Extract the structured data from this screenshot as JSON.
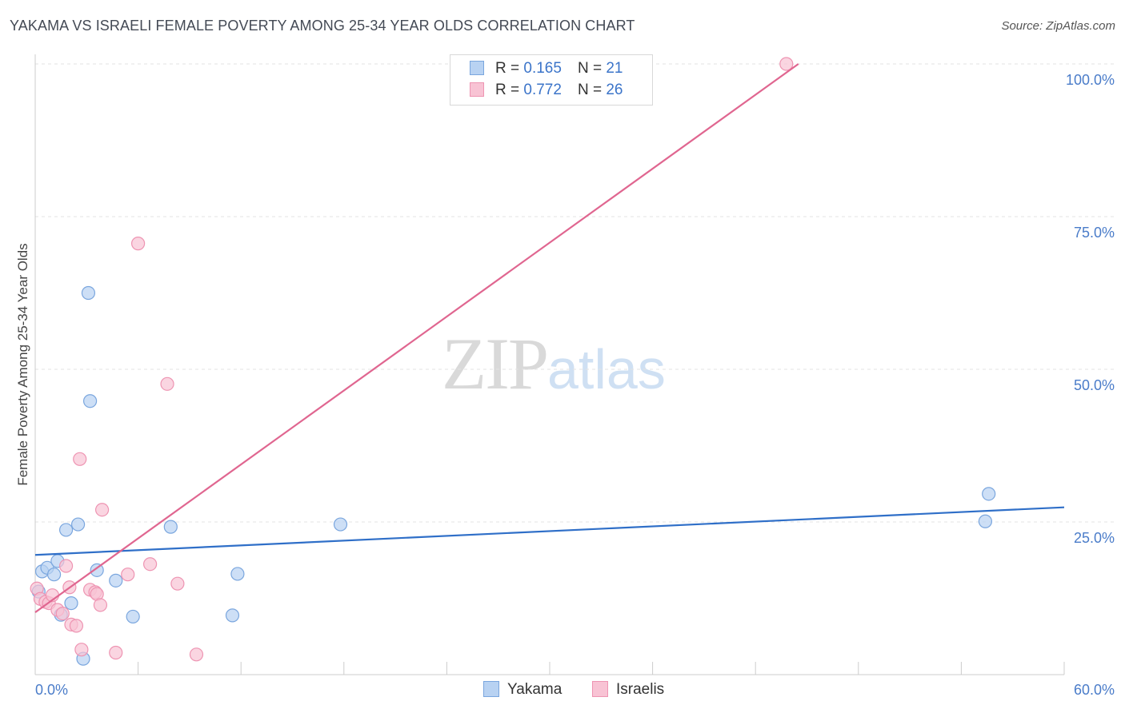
{
  "title": "YAKAMA VS ISRAELI FEMALE POVERTY AMONG 25-34 YEAR OLDS CORRELATION CHART",
  "source": "Source: ZipAtlas.com",
  "watermark": {
    "zip": "ZIP",
    "atlas": "atlas"
  },
  "legend": {
    "r_label": "R =",
    "n_label": "N =",
    "rows": [
      {
        "r": "0.165",
        "n": "21"
      },
      {
        "r": "0.772",
        "n": "26"
      }
    ]
  },
  "colors": {
    "yakama_fill": "#b8d2f2",
    "yakama_stroke": "#7aa6de",
    "yakama_line": "#2f6fc8",
    "israeli_fill": "#f8c3d4",
    "israeli_stroke": "#ee94b2",
    "israeli_line": "#e06690",
    "grid": "#e3e3e3",
    "axis": "#cccccc",
    "tick_text": "#4a7cc9"
  },
  "chart_data": {
    "type": "scatter",
    "title": "YAKAMA VS ISRAELI FEMALE POVERTY AMONG 25-34 YEAR OLDS CORRELATION CHART",
    "xlabel": "",
    "ylabel": "Female Poverty Among 25-34 Year Olds",
    "xlim": [
      0,
      60
    ],
    "ylim": [
      0,
      100
    ],
    "x_tick_labels": [
      "0.0%",
      "60.0%"
    ],
    "y_ticks": [
      25,
      50,
      75,
      100
    ],
    "y_tick_labels": [
      "25.0%",
      "50.0%",
      "75.0%",
      "100.0%"
    ],
    "grid": true,
    "legend_position": "top-center",
    "series": [
      {
        "name": "Yakama",
        "r": 0.165,
        "n": 21,
        "trend": {
          "x0": 0,
          "y0": 19.6,
          "x1": 60,
          "y1": 27.4
        },
        "points": [
          {
            "x": 0.2,
            "y": 13.6
          },
          {
            "x": 0.4,
            "y": 16.9
          },
          {
            "x": 0.7,
            "y": 17.5
          },
          {
            "x": 1.1,
            "y": 16.4
          },
          {
            "x": 1.3,
            "y": 18.6
          },
          {
            "x": 1.5,
            "y": 9.8
          },
          {
            "x": 1.8,
            "y": 23.7
          },
          {
            "x": 2.1,
            "y": 11.7
          },
          {
            "x": 2.5,
            "y": 24.6
          },
          {
            "x": 2.8,
            "y": 2.6
          },
          {
            "x": 3.1,
            "y": 62.5
          },
          {
            "x": 3.2,
            "y": 44.8
          },
          {
            "x": 3.6,
            "y": 17.1
          },
          {
            "x": 4.7,
            "y": 15.4
          },
          {
            "x": 5.7,
            "y": 9.5
          },
          {
            "x": 7.9,
            "y": 24.2
          },
          {
            "x": 11.5,
            "y": 9.7
          },
          {
            "x": 11.8,
            "y": 16.5
          },
          {
            "x": 17.8,
            "y": 24.6
          },
          {
            "x": 55.4,
            "y": 25.1
          },
          {
            "x": 55.6,
            "y": 29.6
          }
        ]
      },
      {
        "name": "Israelis",
        "r": 0.772,
        "n": 26,
        "trend": {
          "x0": 0,
          "y0": 10.2,
          "x1": 44.5,
          "y1": 100
        },
        "points": [
          {
            "x": 0.1,
            "y": 14.1
          },
          {
            "x": 0.3,
            "y": 12.4
          },
          {
            "x": 0.6,
            "y": 11.9
          },
          {
            "x": 0.8,
            "y": 11.7
          },
          {
            "x": 1.0,
            "y": 13.0
          },
          {
            "x": 1.3,
            "y": 10.6
          },
          {
            "x": 1.6,
            "y": 10.0
          },
          {
            "x": 1.8,
            "y": 17.8
          },
          {
            "x": 2.0,
            "y": 14.3
          },
          {
            "x": 2.1,
            "y": 8.2
          },
          {
            "x": 2.4,
            "y": 8.0
          },
          {
            "x": 2.6,
            "y": 35.3
          },
          {
            "x": 2.7,
            "y": 4.1
          },
          {
            "x": 3.2,
            "y": 13.9
          },
          {
            "x": 3.5,
            "y": 13.5
          },
          {
            "x": 3.6,
            "y": 13.2
          },
          {
            "x": 3.8,
            "y": 11.4
          },
          {
            "x": 3.9,
            "y": 27.0
          },
          {
            "x": 4.7,
            "y": 3.6
          },
          {
            "x": 5.4,
            "y": 16.4
          },
          {
            "x": 6.0,
            "y": 70.6
          },
          {
            "x": 6.7,
            "y": 18.1
          },
          {
            "x": 7.7,
            "y": 47.6
          },
          {
            "x": 8.3,
            "y": 14.9
          },
          {
            "x": 9.4,
            "y": 3.3
          },
          {
            "x": 43.8,
            "y": 100.0
          }
        ]
      }
    ]
  }
}
